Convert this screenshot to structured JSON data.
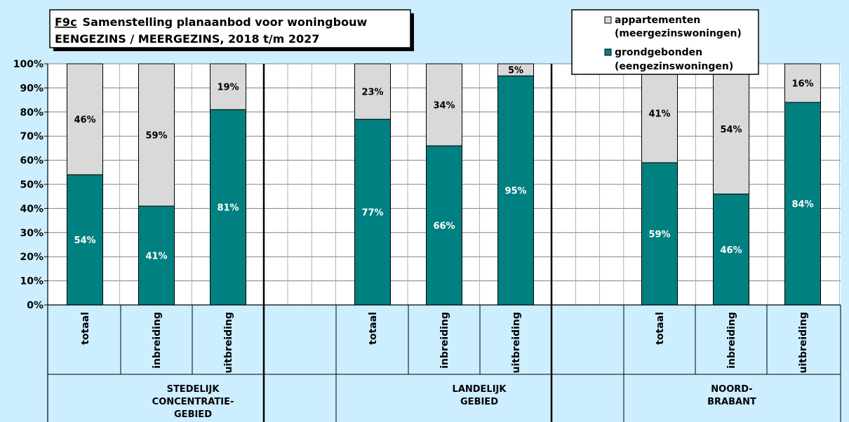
{
  "chart_data": {
    "type": "bar",
    "stacked": true,
    "percent": true,
    "title_code": "F9c",
    "title_line1": "Samenstelling planaanbod voor woningbouw",
    "title_line2": "EENGEZINS / MEERGEZINS,  2018 t/m 2027",
    "ylim": [
      0,
      100
    ],
    "yticks": [
      "0%",
      "10%",
      "20%",
      "30%",
      "40%",
      "50%",
      "60%",
      "70%",
      "80%",
      "90%",
      "100%"
    ],
    "grid": true,
    "legend_position": "top-right",
    "legend": [
      {
        "line1": "appartementen",
        "line2": "(meergezinswoningen)",
        "color": "#d9d9d9"
      },
      {
        "line1": "grondgebonden",
        "line2": "(eengezinswoningen)",
        "color": "#008080"
      }
    ],
    "groups": [
      {
        "label_lines": [
          "STEDELIJK",
          "CONCENTRATIE-",
          "GEBIED"
        ]
      },
      {
        "label_lines": [
          "LANDELIJK",
          "GEBIED"
        ]
      },
      {
        "label_lines": [
          "NOORD-",
          "BRABANT"
        ]
      }
    ],
    "categories": [
      "totaal",
      "inbreiding",
      "uitbreiding",
      "totaal",
      "inbreiding",
      "uitbreiding",
      "totaal",
      "inbreiding",
      "uitbreiding"
    ],
    "series": [
      {
        "name": "grondgebonden (eengezinswoningen)",
        "color": "#008080",
        "values": [
          54,
          41,
          81,
          77,
          66,
          95,
          59,
          46,
          84
        ],
        "labels": [
          "54%",
          "41%",
          "81%",
          "77%",
          "66%",
          "95%",
          "59%",
          "46%",
          "84%"
        ]
      },
      {
        "name": "appartementen (meergezinswoningen)",
        "color": "#d9d9d9",
        "values": [
          46,
          59,
          19,
          23,
          34,
          5,
          41,
          54,
          16
        ],
        "labels": [
          "46%",
          "59%",
          "19%",
          "23%",
          "34%",
          "5%",
          "41%",
          "54%",
          "16%"
        ]
      }
    ]
  }
}
